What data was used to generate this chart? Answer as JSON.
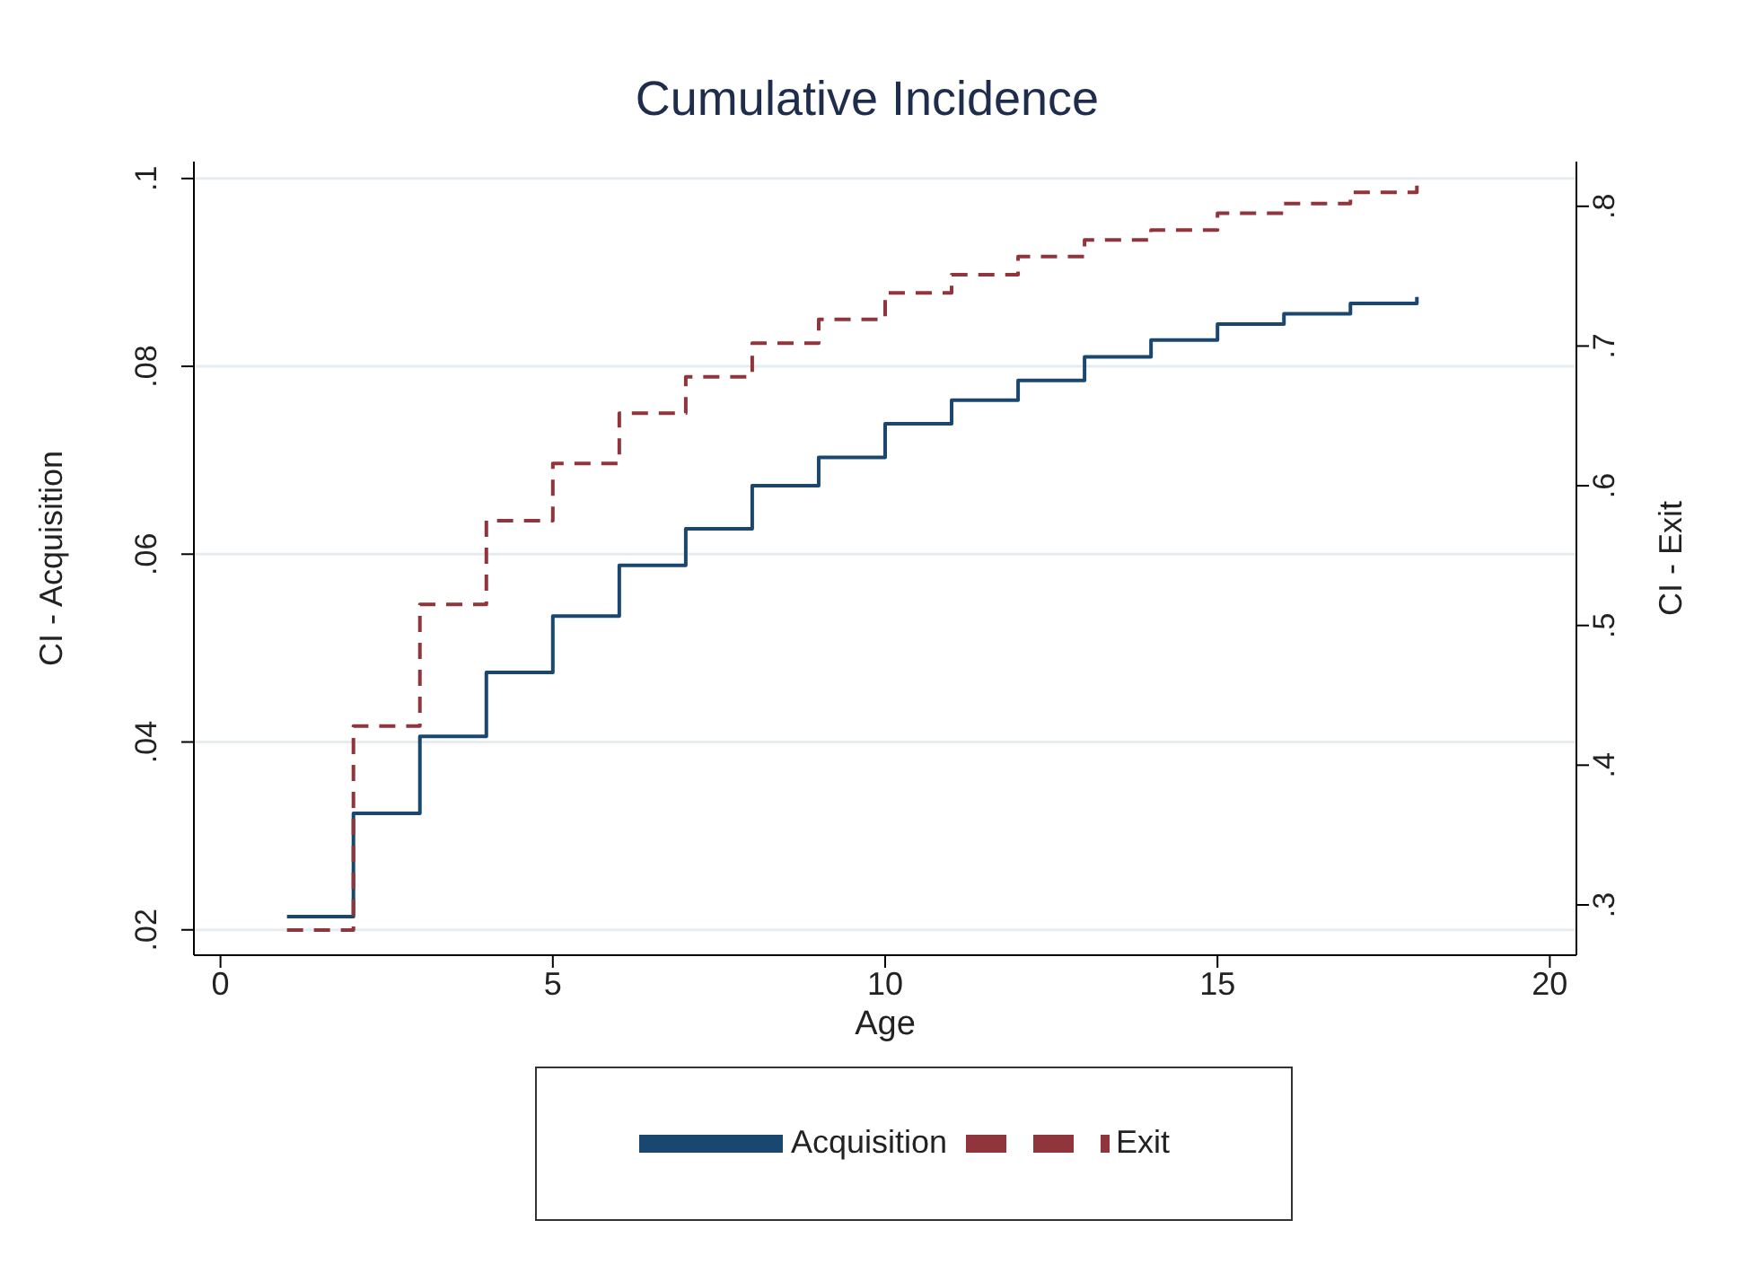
{
  "chart_data": {
    "type": "step",
    "title": "Cumulative Incidence",
    "xlabel": "Age",
    "ylabel": "CI - Acquisition",
    "y2label": "CI - Exit",
    "x": [
      1,
      2,
      3,
      4,
      5,
      6,
      7,
      8,
      9,
      10,
      11,
      12,
      13,
      14,
      15,
      16,
      17,
      18
    ],
    "series": [
      {
        "name": "Acquisition",
        "color": "#1a476f",
        "line_style": "solid",
        "values": [
          0.0214,
          0.0324,
          0.0406,
          0.0474,
          0.0534,
          0.0588,
          0.0627,
          0.0673,
          0.0703,
          0.0739,
          0.0764,
          0.0785,
          0.081,
          0.0828,
          0.0845,
          0.0856,
          0.0867,
          0.0874
        ]
      },
      {
        "name": "Exit",
        "color": "#90353b",
        "line_style": "dashed",
        "axis": "y2",
        "values": [
          0.282,
          0.428,
          0.515,
          0.575,
          0.616,
          0.652,
          0.678,
          0.702,
          0.719,
          0.738,
          0.751,
          0.764,
          0.776,
          0.783,
          0.795,
          0.802,
          0.81,
          0.816
        ]
      }
    ],
    "xlim": [
      -0.4,
      20.4
    ],
    "xticks": [
      0,
      5,
      10,
      15,
      20
    ],
    "ylim": [
      0.0173,
      0.1018
    ],
    "yticks": [
      {
        "value": 0.02,
        "label": ".02"
      },
      {
        "value": 0.04,
        "label": ".04"
      },
      {
        "value": 0.06,
        "label": ".06"
      },
      {
        "value": 0.08,
        "label": ".08"
      },
      {
        "value": 0.1,
        "label": ".1"
      }
    ],
    "y2lim": [
      0.264,
      0.832
    ],
    "y2ticks": [
      {
        "value": 0.3,
        "label": ".3"
      },
      {
        "value": 0.4,
        "label": ".4"
      },
      {
        "value": 0.5,
        "label": ".5"
      },
      {
        "value": 0.6,
        "label": ".6"
      },
      {
        "value": 0.7,
        "label": ".7"
      },
      {
        "value": 0.8,
        "label": ".8"
      }
    ],
    "grid": "y",
    "legend": "bottom",
    "marker": "none"
  }
}
